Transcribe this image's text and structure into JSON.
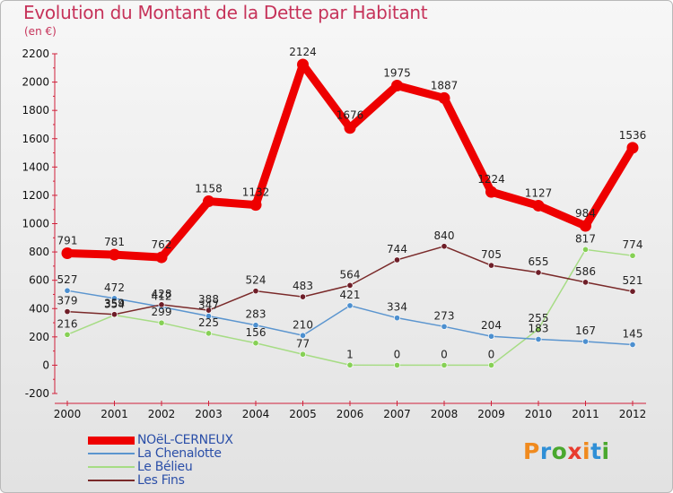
{
  "header": {
    "title": "Evolution du Montant de la Dette par Habitant",
    "unit": "(en €)"
  },
  "logo": {
    "text": "Proxiti",
    "colors": [
      "#f08a1e",
      "#2f8fd6",
      "#4aa82e",
      "#e83c2e",
      "#f08a1e",
      "#2f8fd6",
      "#4aa82e"
    ]
  },
  "chart_data": {
    "type": "line",
    "x": [
      "2000",
      "2001",
      "2002",
      "2003",
      "2004",
      "2005",
      "2006",
      "2007",
      "2008",
      "2009",
      "2010",
      "2011",
      "2012"
    ],
    "ylim": [
      -200,
      2200
    ],
    "yticks": [
      "-200",
      "0",
      "200",
      "400",
      "600",
      "800",
      "1000",
      "1200",
      "1400",
      "1600",
      "1800",
      "2000",
      "2200"
    ],
    "grid": false,
    "legend_position": "bottom-left",
    "series": [
      {
        "name": "NOëL-CERNEUX",
        "color": "#ee0000",
        "highlight": true,
        "values": [
          791,
          781,
          762,
          1158,
          1132,
          2124,
          1676,
          1975,
          1887,
          1224,
          1127,
          984,
          1536
        ],
        "labels": [
          "791",
          "781",
          "762",
          "1158",
          "1132",
          "2124",
          "1676",
          "1975",
          "1887",
          "1224",
          "1127",
          "984",
          "1536"
        ]
      },
      {
        "name": "La Chenalotte",
        "color": "#5b95cf",
        "marker": "#4c8fcf",
        "values": [
          527,
          472,
          412,
          347,
          283,
          210,
          421,
          334,
          273,
          204,
          183,
          167,
          145
        ],
        "labels": [
          "527",
          "472",
          "412",
          "347",
          "283",
          "210",
          "421",
          "334",
          "273",
          "204",
          "183",
          "167",
          "145"
        ]
      },
      {
        "name": "Le Bélieu",
        "color": "#a6dc84",
        "marker": "#86d055",
        "values": [
          216,
          354,
          299,
          225,
          156,
          77,
          1,
          0,
          0,
          0,
          255,
          817,
          774
        ],
        "labels": [
          "216",
          "354",
          "299",
          "225",
          "156",
          "77",
          "1",
          "0",
          "0",
          "0",
          "255",
          "817",
          "774"
        ]
      },
      {
        "name": "Les Fins",
        "color": "#7a2a2a",
        "marker": "#6e1e28",
        "values": [
          379,
          359,
          428,
          388,
          524,
          483,
          564,
          744,
          840,
          705,
          655,
          586,
          521
        ],
        "labels": [
          "379",
          "359",
          "428",
          "388",
          "524",
          "483",
          "564",
          "744",
          "840",
          "705",
          "655",
          "586",
          "521"
        ]
      }
    ]
  }
}
